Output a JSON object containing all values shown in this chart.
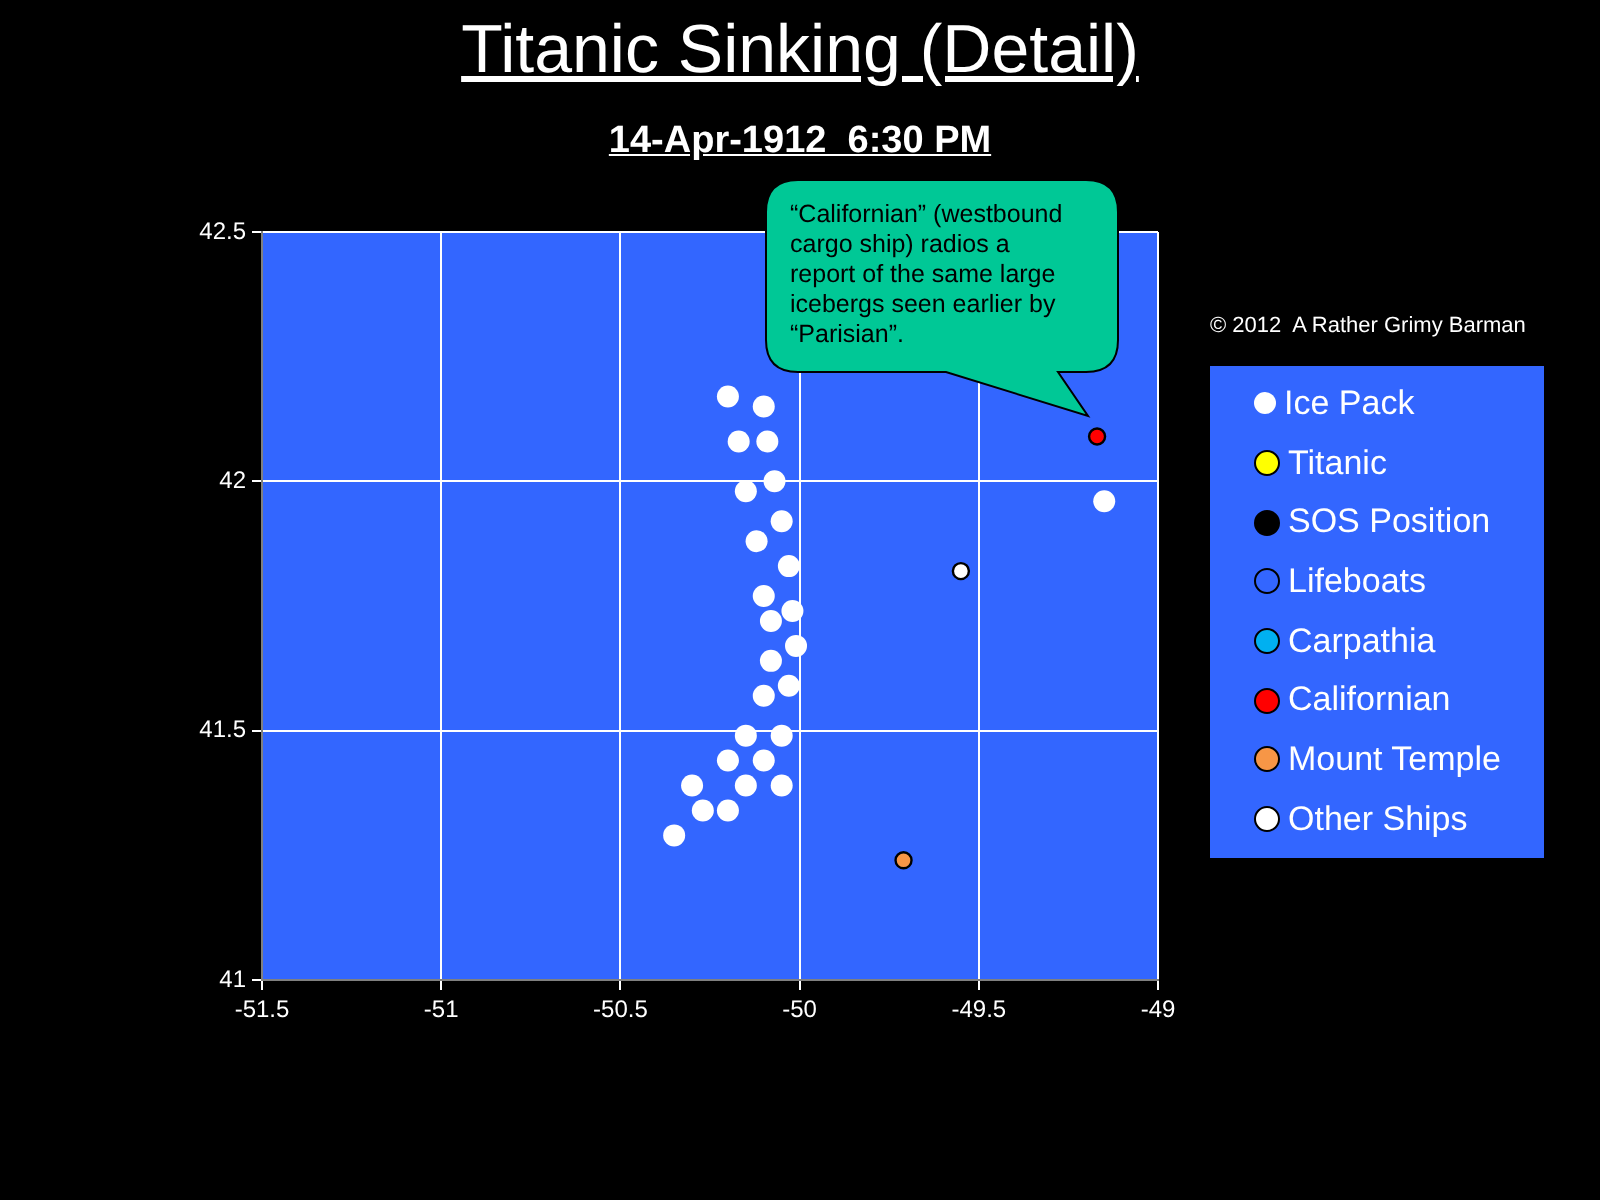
{
  "chart_data": {
    "type": "scatter",
    "title": "Titanic Sinking (Detail)",
    "subtitle": "14-Apr-1912  6:30 PM",
    "xlim": [
      -51.5,
      -49
    ],
    "xticks": [
      -51.5,
      -51,
      -50.5,
      -50,
      -49.5,
      -49
    ],
    "ylim": [
      41,
      42.5
    ],
    "yticks": [
      41,
      41.5,
      42,
      42.5
    ],
    "grid": true,
    "legend": "right",
    "marker": "circle",
    "series": [
      {
        "name": "Ice Pack",
        "color": "#ffffff",
        "x": [
          -50.2,
          -50.1,
          -50.17,
          -50.09,
          -50.07,
          -50.15,
          -50.05,
          -50.12,
          -50.03,
          -50.1,
          -50.02,
          -50.08,
          -50.01,
          -50.08,
          -50.03,
          -50.1,
          -50.15,
          -50.05,
          -50.2,
          -50.1,
          -50.3,
          -50.15,
          -50.05,
          -50.27,
          -50.2,
          -50.35,
          -49.15
        ],
        "values": [
          42.17,
          42.15,
          42.08,
          42.08,
          42.0,
          41.98,
          41.92,
          41.88,
          41.83,
          41.77,
          41.74,
          41.72,
          41.67,
          41.64,
          41.59,
          41.57,
          41.49,
          41.49,
          41.44,
          41.44,
          41.39,
          41.39,
          41.39,
          41.34,
          41.34,
          41.29,
          41.96
        ]
      },
      {
        "name": "Titanic",
        "color": "#ffff00"
      },
      {
        "name": "SOS Position",
        "color": "#000000"
      },
      {
        "name": "Lifeboats",
        "color": "#3366ff"
      },
      {
        "name": "Carpathia",
        "color": "#00b0f0"
      },
      {
        "name": "Californian",
        "color": "#ff0000",
        "x": [
          -49.17
        ],
        "values": [
          42.09
        ]
      },
      {
        "name": "Mount Temple",
        "color": "#f79646",
        "x": [
          -49.71
        ],
        "values": [
          41.24
        ]
      },
      {
        "name": "Other Ships",
        "color": "#ffffff",
        "x": [
          -49.55
        ],
        "values": [
          41.82
        ]
      }
    ],
    "annotations": [
      "“Californian” (westbound cargo ship) radios a report of the same large icebergs seen earlier by “Parisian”.",
      "© 2012  A Rather Grimy Barman"
    ]
  }
}
